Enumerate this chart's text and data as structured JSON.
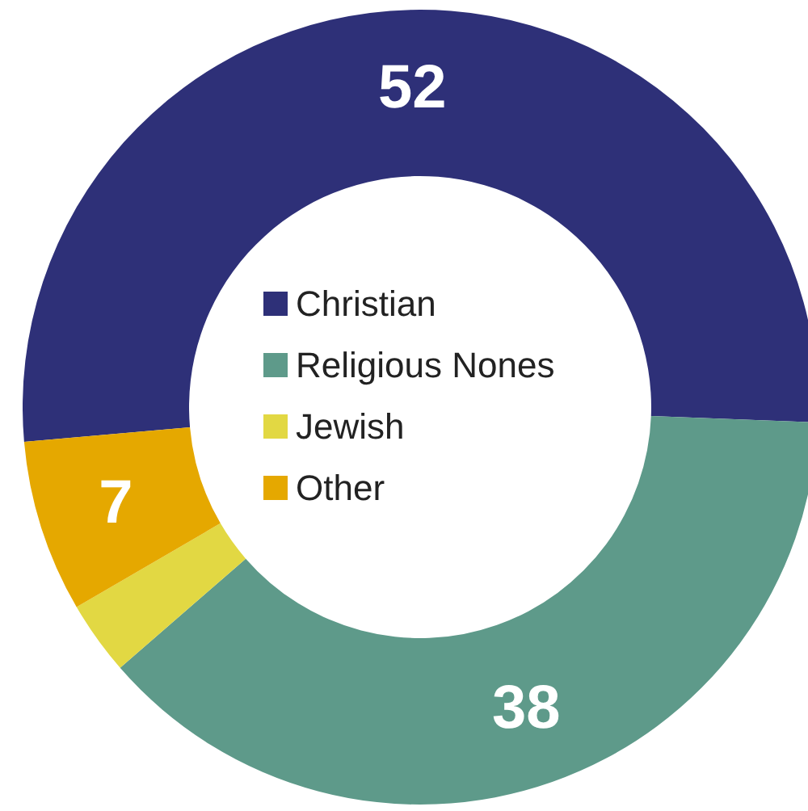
{
  "chart_data": {
    "type": "donut",
    "categories": [
      "Christian",
      "Religious Nones",
      "Jewish",
      "Other"
    ],
    "values": [
      52,
      38,
      3,
      7
    ],
    "colors": [
      "#2e3078",
      "#5e9a8a",
      "#e2d843",
      "#e5a800"
    ],
    "value_labels": [
      "52",
      "38",
      null,
      "7"
    ],
    "legend": "center"
  }
}
